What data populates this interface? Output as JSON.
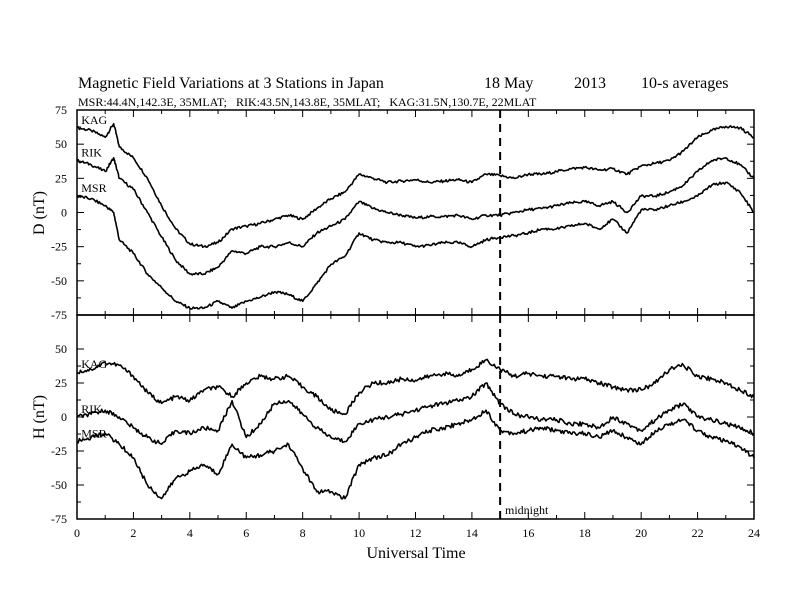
{
  "title": {
    "main": "Magnetic Field Variations at 3 Stations in Japan",
    "date": "18 May",
    "year": "2013",
    "averaging": "10-s averages"
  },
  "subtitle": "MSR:44.4N,142.3E, 35MLAT;   RIK:43.5N,143.8E, 35MLAT;   KAG:31.5N,130.7E, 22MLAT",
  "colors": {
    "line": "#000000",
    "background": "#ffffff"
  },
  "chart_data": [
    {
      "type": "line",
      "panel": "D",
      "ylabel": "D (nT)",
      "xlabel": "",
      "xlim": [
        0,
        24
      ],
      "ylim": [
        -75,
        75
      ],
      "yticks": [
        75,
        50,
        25,
        0,
        -25,
        -50,
        -75
      ],
      "xticks": [
        0,
        2,
        4,
        6,
        8,
        10,
        12,
        14,
        16,
        18,
        20,
        22,
        24
      ],
      "x": [
        0,
        0.5,
        1,
        1.3,
        1.5,
        2,
        2.5,
        3,
        3.5,
        4,
        4.5,
        5,
        5.5,
        6,
        6.5,
        7,
        7.5,
        8,
        8.5,
        9,
        9.5,
        10,
        10.5,
        11,
        11.5,
        12,
        12.5,
        13,
        13.5,
        14,
        14.5,
        15,
        15.5,
        16,
        16.5,
        17,
        17.5,
        18,
        18.5,
        19,
        19.5,
        20,
        20.5,
        21,
        21.5,
        22,
        22.5,
        23,
        23.5,
        24
      ],
      "series": [
        {
          "name": "KAG",
          "values": [
            62,
            60,
            55,
            65,
            48,
            40,
            25,
            5,
            -12,
            -23,
            -25,
            -22,
            -12,
            -10,
            -8,
            -5,
            -2,
            -5,
            3,
            10,
            15,
            28,
            25,
            22,
            23,
            24,
            22,
            23,
            24,
            22,
            28,
            27,
            25,
            28,
            28,
            30,
            32,
            33,
            31,
            32,
            28,
            34,
            36,
            38,
            45,
            55,
            60,
            63,
            62,
            55
          ]
        },
        {
          "name": "RIK",
          "values": [
            38,
            35,
            30,
            40,
            25,
            17,
            0,
            -18,
            -35,
            -45,
            -45,
            -40,
            -28,
            -30,
            -25,
            -25,
            -22,
            -25,
            -15,
            -10,
            -5,
            8,
            3,
            0,
            -2,
            -4,
            -3,
            -3,
            -2,
            -5,
            -2,
            -2,
            0,
            2,
            3,
            5,
            7,
            8,
            5,
            8,
            0,
            12,
            12,
            15,
            20,
            30,
            38,
            40,
            35,
            25
          ]
        },
        {
          "name": "MSR",
          "values": [
            12,
            10,
            5,
            0,
            -20,
            -30,
            -45,
            -55,
            -65,
            -70,
            -70,
            -65,
            -70,
            -65,
            -62,
            -58,
            -60,
            -65,
            -52,
            -38,
            -32,
            -15,
            -20,
            -22,
            -22,
            -25,
            -24,
            -22,
            -22,
            -25,
            -20,
            -18,
            -17,
            -15,
            -12,
            -12,
            -10,
            -8,
            -12,
            -5,
            -15,
            2,
            2,
            5,
            8,
            12,
            20,
            22,
            15,
            0
          ]
        }
      ]
    },
    {
      "type": "line",
      "panel": "H",
      "ylabel": "H (nT)",
      "xlabel": "Universal Time",
      "xlim": [
        0,
        24
      ],
      "ylim": [
        -75,
        75
      ],
      "yticks": [
        50,
        25,
        0,
        -25,
        -50,
        -75
      ],
      "xticks": [
        0,
        2,
        4,
        6,
        8,
        10,
        12,
        14,
        16,
        18,
        20,
        22,
        24
      ],
      "x": [
        0,
        0.5,
        1,
        1.5,
        2,
        2.5,
        3,
        3.5,
        4,
        4.5,
        5,
        5.5,
        6,
        6.5,
        7,
        7.5,
        8,
        8.5,
        9,
        9.5,
        10,
        10.5,
        11,
        11.5,
        12,
        12.5,
        13,
        13.5,
        14,
        14.5,
        15,
        15.5,
        16,
        16.5,
        17,
        17.5,
        18,
        18.5,
        19,
        19.5,
        20,
        20.5,
        21,
        21.5,
        22,
        22.5,
        23,
        23.5,
        24
      ],
      "series": [
        {
          "name": "KAG",
          "values": [
            33,
            35,
            40,
            38,
            30,
            18,
            10,
            15,
            12,
            20,
            22,
            15,
            25,
            30,
            28,
            30,
            22,
            15,
            5,
            2,
            18,
            25,
            25,
            28,
            27,
            30,
            32,
            30,
            35,
            42,
            35,
            30,
            32,
            30,
            30,
            28,
            28,
            25,
            22,
            20,
            20,
            25,
            35,
            38,
            30,
            28,
            25,
            20,
            15
          ]
        },
        {
          "name": "RIK",
          "values": [
            0,
            2,
            5,
            0,
            -8,
            -15,
            -20,
            -10,
            -12,
            -8,
            -10,
            12,
            -15,
            -5,
            10,
            12,
            2,
            -8,
            -15,
            -18,
            -5,
            -2,
            0,
            2,
            5,
            8,
            10,
            12,
            15,
            25,
            10,
            2,
            0,
            -2,
            -2,
            -5,
            -5,
            -8,
            0,
            -5,
            -10,
            -2,
            5,
            10,
            0,
            -2,
            -5,
            -8,
            -12
          ]
        },
        {
          "name": "MSR",
          "values": [
            -18,
            -15,
            -12,
            -20,
            -30,
            -50,
            -60,
            -45,
            -40,
            -35,
            -42,
            -20,
            -30,
            -28,
            -25,
            -20,
            -38,
            -55,
            -55,
            -60,
            -35,
            -30,
            -28,
            -20,
            -15,
            -10,
            -8,
            -5,
            -2,
            5,
            -10,
            -12,
            -10,
            -8,
            -10,
            -12,
            -12,
            -15,
            -10,
            -15,
            -20,
            -10,
            -5,
            -2,
            -10,
            -15,
            -18,
            -22,
            -30
          ]
        }
      ]
    }
  ],
  "annotation": "midnight",
  "midnight_ut": 15
}
